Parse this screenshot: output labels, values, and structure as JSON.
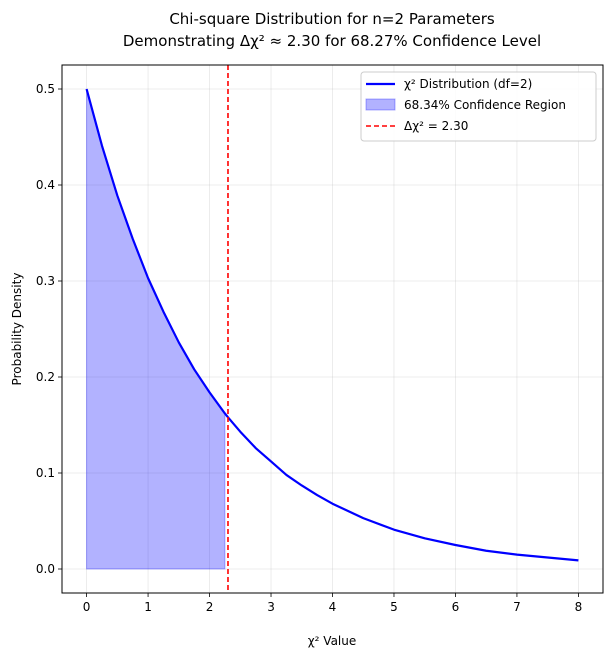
{
  "chart_data": {
    "type": "line",
    "title_line1": "Chi-square Distribution for n=2 Parameters",
    "title_line2": "Demonstrating Δχ² ≈ 2.30 for 68.27% Confidence Level",
    "xlabel": "χ² Value",
    "ylabel": "Probability Density",
    "xlim": [
      -0.4,
      8.4
    ],
    "ylim": [
      -0.025,
      0.525
    ],
    "xticks": [
      0,
      1,
      2,
      3,
      4,
      5,
      6,
      7,
      8
    ],
    "xtick_labels": [
      "0",
      "1",
      "2",
      "3",
      "4",
      "5",
      "6",
      "7",
      "8"
    ],
    "yticks": [
      0.0,
      0.1,
      0.2,
      0.3,
      0.4,
      0.5
    ],
    "ytick_labels": [
      "0.0",
      "0.1",
      "0.2",
      "0.3",
      "0.4",
      "0.5"
    ],
    "grid": true,
    "legend_position": "top-right",
    "series": [
      {
        "name": "χ² Distribution (df=2)",
        "kind": "line",
        "color": "#0000ff",
        "x": [
          0,
          0.25,
          0.5,
          0.75,
          1,
          1.25,
          1.5,
          1.75,
          2,
          2.25,
          2.3,
          2.5,
          2.75,
          3,
          3.25,
          3.5,
          3.75,
          4,
          4.5,
          5,
          5.5,
          6,
          6.5,
          7,
          7.5,
          8
        ],
        "y": [
          0.5,
          0.441,
          0.389,
          0.344,
          0.303,
          0.268,
          0.236,
          0.208,
          0.184,
          0.162,
          0.158,
          0.143,
          0.126,
          0.112,
          0.098,
          0.087,
          0.077,
          0.068,
          0.053,
          0.041,
          0.032,
          0.025,
          0.019,
          0.015,
          0.012,
          0.009
        ]
      },
      {
        "name": "68.34% Confidence Region",
        "kind": "area",
        "color": "#0000ff",
        "x_range": [
          0,
          2.25
        ]
      },
      {
        "name": "Δχ² = 2.30",
        "kind": "vline",
        "color": "#ff0000",
        "x": 2.3
      }
    ]
  }
}
